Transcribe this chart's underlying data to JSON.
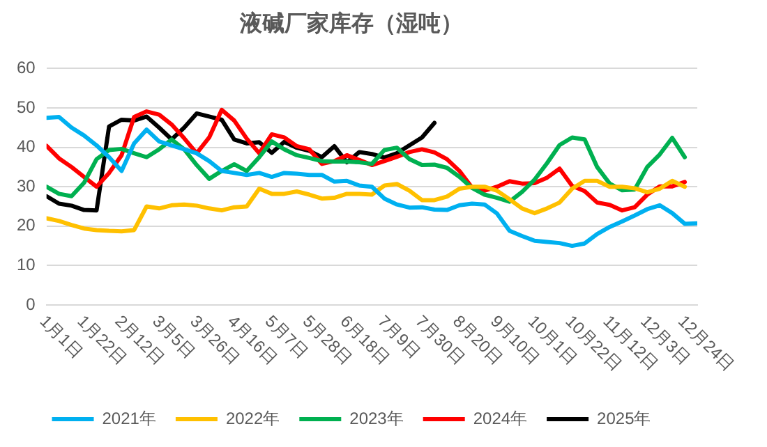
{
  "chart_data": {
    "type": "line",
    "title": "液碱厂家库存（湿吨）",
    "x": [
      "--01-01",
      "--01-08",
      "--01-15",
      "--01-22",
      "--01-29",
      "--02-05",
      "--02-12",
      "--02-19",
      "--02-26",
      "--03-05",
      "--03-12",
      "--03-19",
      "--03-26",
      "--04-02",
      "--04-09",
      "--04-16",
      "--04-23",
      "--04-30",
      "--05-07",
      "--05-14",
      "--05-21",
      "--05-28",
      "--06-04",
      "--06-11",
      "--06-18",
      "--06-25",
      "--07-02",
      "--07-09",
      "--07-16",
      "--07-23",
      "--07-30",
      "--08-06",
      "--08-13",
      "--08-20",
      "--08-27",
      "--09-03",
      "--09-10",
      "--09-17",
      "--09-24",
      "--10-01",
      "--10-08",
      "--10-15",
      "--10-22",
      "--10-29",
      "--11-05",
      "--11-12",
      "--11-19",
      "--11-26",
      "--12-03",
      "--12-10",
      "--12-17",
      "--12-24",
      "--12-31"
    ],
    "series": [
      {
        "name": "2021年",
        "color": "#00b0f0",
        "values": [
          47.5,
          47.7,
          45,
          43,
          40.5,
          37.5,
          34,
          41,
          44.5,
          41.5,
          40.5,
          39.5,
          38.5,
          36.5,
          34,
          33.5,
          33,
          33.5,
          32.5,
          33.5,
          33.3,
          33,
          33,
          31.3,
          31.5,
          30.3,
          30,
          27,
          25.5,
          24.7,
          24.8,
          24.2,
          24.1,
          25.3,
          25.7,
          25.5,
          23.2,
          18.8,
          17.5,
          16.3,
          16,
          15.7,
          15,
          15.6,
          18,
          19.8,
          21.2,
          22.7,
          24.3,
          25.3,
          23.3,
          20.6,
          20.7
        ]
      },
      {
        "name": "2022年",
        "color": "#ffc000",
        "values": [
          22,
          21.3,
          20.3,
          19.4,
          19,
          18.8,
          18.7,
          19,
          25,
          24.5,
          25.3,
          25.5,
          25.2,
          24.5,
          24,
          24.8,
          25,
          29.5,
          28.2,
          28.2,
          28.8,
          28,
          27,
          27.2,
          28.2,
          28.2,
          28,
          30.3,
          30.7,
          29,
          26.6,
          26.6,
          27.5,
          29.5,
          30,
          30,
          29,
          26.8,
          24.5,
          23.3,
          24.5,
          26,
          29.5,
          31.5,
          31.5,
          30,
          30,
          29.6,
          28.6,
          29.5,
          31.5,
          30,
          null
        ]
      },
      {
        "name": "2023年",
        "color": "#00b050",
        "values": [
          30,
          28.2,
          27.6,
          31,
          37,
          39.3,
          39.6,
          38.5,
          37.5,
          39.5,
          42,
          39.5,
          35.5,
          32,
          34,
          35.7,
          34,
          37.5,
          41.5,
          39.5,
          38,
          37.3,
          36.5,
          36.4,
          36.4,
          36.2,
          35.8,
          39.3,
          39.9,
          37,
          35.5,
          35.6,
          34.8,
          32.5,
          29.7,
          28,
          27.2,
          26.2,
          28.7,
          31.8,
          36,
          40.6,
          42.5,
          42,
          35,
          30.8,
          29.1,
          29.3,
          35,
          38.2,
          42.4,
          37.5,
          null
        ]
      },
      {
        "name": "2024年",
        "color": "#ff0000",
        "values": [
          40.4,
          37.2,
          35,
          32.5,
          30,
          33.5,
          38,
          47.7,
          49.1,
          48.3,
          45.8,
          42.3,
          38.5,
          42.5,
          49.5,
          46.8,
          42.2,
          38.5,
          43.3,
          42.5,
          40.3,
          39.5,
          35.8,
          36.5,
          38,
          36.8,
          35.5,
          36.5,
          37.6,
          38.8,
          39.5,
          38.7,
          37,
          34,
          29.8,
          29,
          30,
          31.4,
          30.8,
          30.9,
          32.3,
          34.6,
          30.2,
          28.9,
          26,
          25.4,
          24,
          24.8,
          28,
          30.1,
          30.1,
          31.2,
          null
        ]
      },
      {
        "name": "2025年",
        "color": "#000000",
        "values": [
          27.6,
          25.7,
          25.2,
          24.1,
          24,
          45.3,
          47,
          46.8,
          47.8,
          45,
          42,
          45,
          48.6,
          47.8,
          47,
          42,
          41,
          41.3,
          38.6,
          41.4,
          39.9,
          39.1,
          37.5,
          40.3,
          36.2,
          38.8,
          38.3,
          37.4,
          38.5,
          40.5,
          42.5,
          46.2,
          null,
          null,
          null,
          null,
          null,
          null,
          null,
          null,
          null,
          null,
          null,
          null,
          null,
          null,
          null,
          null,
          null,
          null,
          null,
          null,
          null
        ]
      }
    ],
    "xlim": [
      "--01-01",
      "--12-31"
    ],
    "xticks": [
      {
        "value": "--01-01",
        "label": "1月1日"
      },
      {
        "value": "--01-22",
        "label": "1月22日"
      },
      {
        "value": "--02-12",
        "label": "2月12日"
      },
      {
        "value": "--03-05",
        "label": "3月5日"
      },
      {
        "value": "--03-26",
        "label": "3月26日"
      },
      {
        "value": "--04-16",
        "label": "4月16日"
      },
      {
        "value": "--05-07",
        "label": "5月7日"
      },
      {
        "value": "--05-28",
        "label": "5月28日"
      },
      {
        "value": "--06-18",
        "label": "6月18日"
      },
      {
        "value": "--07-09",
        "label": "7月9日"
      },
      {
        "value": "--07-30",
        "label": "7月30日"
      },
      {
        "value": "--08-20",
        "label": "8月20日"
      },
      {
        "value": "--09-10",
        "label": "9月10日"
      },
      {
        "value": "--10-01",
        "label": "10月1日"
      },
      {
        "value": "--10-22",
        "label": "10月22日"
      },
      {
        "value": "--11-12",
        "label": "11月12日"
      },
      {
        "value": "--12-03",
        "label": "12月3日"
      },
      {
        "value": "--12-24",
        "label": "12月24日"
      }
    ],
    "ylim": [
      0,
      60
    ],
    "yticks": [
      0,
      10,
      20,
      30,
      40,
      50,
      60
    ],
    "grid": "y",
    "legend": "bottom",
    "marker": "none",
    "line_style": "solid"
  }
}
